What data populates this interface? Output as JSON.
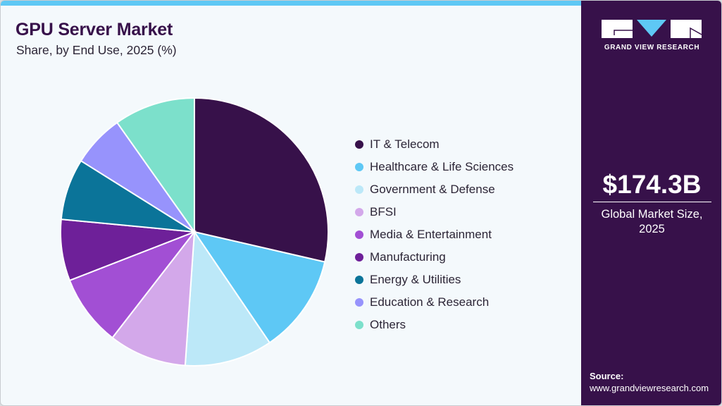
{
  "header": {
    "title": "GPU Server Market",
    "subtitle": "Share, by End Use, 2025 (%)"
  },
  "sidebar": {
    "logo_text": "GRAND VIEW RESEARCH",
    "market_size": "$174.3B",
    "market_label_line1": "Global Market Size,",
    "market_label_line2": "2025",
    "source_label": "Source:",
    "source_url": "www.grandviewresearch.com"
  },
  "colors": {
    "brand": "#37114a",
    "accent": "#5ec8f5",
    "background": "#f4f9fc"
  },
  "legend": [
    {
      "label": "IT & Telecom",
      "color": "#37114a"
    },
    {
      "label": "Healthcare & Life Sciences",
      "color": "#5ec8f5"
    },
    {
      "label": "Government & Defense",
      "color": "#bce8f8"
    },
    {
      "label": "BFSI",
      "color": "#d3a8ea"
    },
    {
      "label": "Media & Entertainment",
      "color": "#a24fd4"
    },
    {
      "label": "Manufacturing",
      "color": "#6e2099"
    },
    {
      "label": "Energy & Utilities",
      "color": "#0b7499"
    },
    {
      "label": "Education & Research",
      "color": "#9793fc"
    },
    {
      "label": "Others",
      "color": "#7ce0cb"
    }
  ],
  "chart_data": {
    "type": "pie",
    "title": "GPU Server Market",
    "subtitle": "Share, by End Use, 2025 (%)",
    "categories": [
      "IT & Telecom",
      "Healthcare & Life Sciences",
      "Government & Defense",
      "BFSI",
      "Media & Entertainment",
      "Manufacturing",
      "Energy & Utilities",
      "Education & Research",
      "Others"
    ],
    "values": [
      28.6,
      11.9,
      10.6,
      9.4,
      8.6,
      7.4,
      7.4,
      6.3,
      9.8
    ],
    "colors": [
      "#37114a",
      "#5ec8f5",
      "#bce8f8",
      "#d3a8ea",
      "#a24fd4",
      "#6e2099",
      "#0b7499",
      "#9793fc",
      "#7ce0cb"
    ],
    "start_angle": "12 o'clock, clockwise",
    "legend_position": "right",
    "annotations": [
      "$174.3B Global Market Size, 2025"
    ]
  }
}
